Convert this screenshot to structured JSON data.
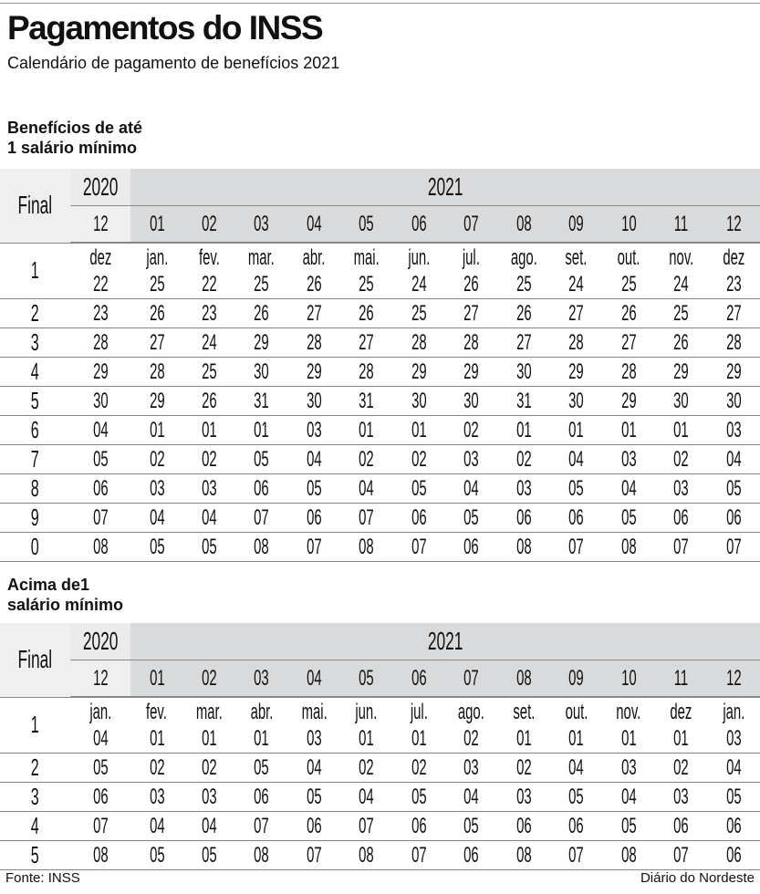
{
  "header": {
    "title": "Pagamentos do INSS",
    "subtitle": "Calendário de pagamento de benefícios 2021"
  },
  "tables": [
    {
      "heading_line1": "Benefícios de até",
      "heading_line2": "1 salário mínimo",
      "final_label": "Final",
      "year_prev": "2020",
      "year_curr": "2021",
      "months": [
        "12",
        "01",
        "02",
        "03",
        "04",
        "05",
        "06",
        "07",
        "08",
        "09",
        "10",
        "11",
        "12"
      ],
      "first_row_months": [
        "dez",
        "jan.",
        "fev.",
        "mar.",
        "abr.",
        "mai.",
        "jun.",
        "jul.",
        "ago.",
        "set.",
        "out.",
        "nov.",
        "dez"
      ],
      "rows": [
        {
          "final": "1",
          "days": [
            "22",
            "25",
            "22",
            "25",
            "26",
            "25",
            "24",
            "26",
            "25",
            "24",
            "25",
            "24",
            "23"
          ]
        },
        {
          "final": "2",
          "days": [
            "23",
            "26",
            "23",
            "26",
            "27",
            "26",
            "25",
            "27",
            "26",
            "27",
            "26",
            "25",
            "27"
          ]
        },
        {
          "final": "3",
          "days": [
            "28",
            "27",
            "24",
            "29",
            "28",
            "27",
            "28",
            "28",
            "27",
            "28",
            "27",
            "26",
            "28"
          ]
        },
        {
          "final": "4",
          "days": [
            "29",
            "28",
            "25",
            "30",
            "29",
            "28",
            "29",
            "29",
            "30",
            "29",
            "28",
            "29",
            "29"
          ]
        },
        {
          "final": "5",
          "days": [
            "30",
            "29",
            "26",
            "31",
            "30",
            "31",
            "30",
            "30",
            "31",
            "30",
            "29",
            "30",
            "30"
          ]
        },
        {
          "final": "6",
          "days": [
            "04",
            "01",
            "01",
            "01",
            "03",
            "01",
            "01",
            "02",
            "01",
            "01",
            "01",
            "01",
            "03"
          ]
        },
        {
          "final": "7",
          "days": [
            "05",
            "02",
            "02",
            "05",
            "04",
            "02",
            "02",
            "03",
            "02",
            "04",
            "03",
            "02",
            "04"
          ]
        },
        {
          "final": "8",
          "days": [
            "06",
            "03",
            "03",
            "06",
            "05",
            "04",
            "05",
            "04",
            "03",
            "05",
            "04",
            "03",
            "05"
          ]
        },
        {
          "final": "9",
          "days": [
            "07",
            "04",
            "04",
            "07",
            "06",
            "07",
            "06",
            "05",
            "06",
            "06",
            "05",
            "06",
            "06"
          ]
        },
        {
          "final": "0",
          "days": [
            "08",
            "05",
            "05",
            "08",
            "07",
            "08",
            "07",
            "06",
            "08",
            "07",
            "08",
            "07",
            "07"
          ]
        }
      ]
    },
    {
      "heading_line1": "Acima de1",
      "heading_line2": "salário mínimo",
      "final_label": "Final",
      "year_prev": "2020",
      "year_curr": "2021",
      "months": [
        "12",
        "01",
        "02",
        "03",
        "04",
        "05",
        "06",
        "07",
        "08",
        "09",
        "10",
        "11",
        "12"
      ],
      "first_row_months": [
        "jan.",
        "fev.",
        "mar.",
        "abr.",
        "mai.",
        "jun.",
        "jul.",
        "ago.",
        "set.",
        "out.",
        "nov.",
        "dez",
        "jan."
      ],
      "rows": [
        {
          "final": "1",
          "days": [
            "04",
            "01",
            "01",
            "01",
            "03",
            "01",
            "01",
            "02",
            "01",
            "01",
            "01",
            "01",
            "03"
          ]
        },
        {
          "final": "2",
          "days": [
            "05",
            "02",
            "02",
            "05",
            "04",
            "02",
            "02",
            "03",
            "02",
            "04",
            "03",
            "02",
            "04"
          ]
        },
        {
          "final": "3",
          "days": [
            "06",
            "03",
            "03",
            "06",
            "05",
            "04",
            "05",
            "04",
            "03",
            "05",
            "04",
            "03",
            "05"
          ]
        },
        {
          "final": "4",
          "days": [
            "07",
            "04",
            "04",
            "07",
            "06",
            "07",
            "06",
            "05",
            "06",
            "06",
            "05",
            "06",
            "06"
          ]
        },
        {
          "final": "5",
          "days": [
            "08",
            "05",
            "05",
            "08",
            "07",
            "08",
            "07",
            "06",
            "08",
            "07",
            "08",
            "07",
            "06"
          ]
        }
      ]
    }
  ],
  "footer": {
    "source": "Fonte: INSS",
    "credit": "Diário do Nordeste"
  }
}
